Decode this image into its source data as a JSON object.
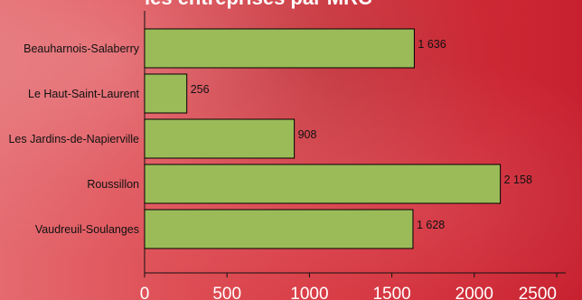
{
  "page": {
    "title": "les entreprises par MRC"
  },
  "chart_data": {
    "type": "bar",
    "orientation": "horizontal",
    "title": "les entreprises par MRC",
    "categories": [
      "Beauharnois-Salaberry",
      "Le Haut-Saint-Laurent",
      "Les Jardins-de-Napierville",
      "Roussillon",
      "Vaudreuil-Soulanges"
    ],
    "values": [
      1636,
      256,
      908,
      2158,
      1628
    ],
    "value_labels": [
      "1 636",
      "256",
      "908",
      "2 158",
      "1 628"
    ],
    "xlim": [
      0,
      2500
    ],
    "x_ticks": [
      0,
      500,
      1000,
      1500,
      2000,
      2500
    ],
    "x_tick_labels": [
      "0",
      "500",
      "1000",
      "1500",
      "2000",
      "2500"
    ],
    "grid": false,
    "legend": "none",
    "colors": {
      "bar_fill": "#9bbb59",
      "bar_stroke": "#000000",
      "text": "#111111",
      "tick_text": "#ffffff",
      "axis": "#111111"
    }
  }
}
